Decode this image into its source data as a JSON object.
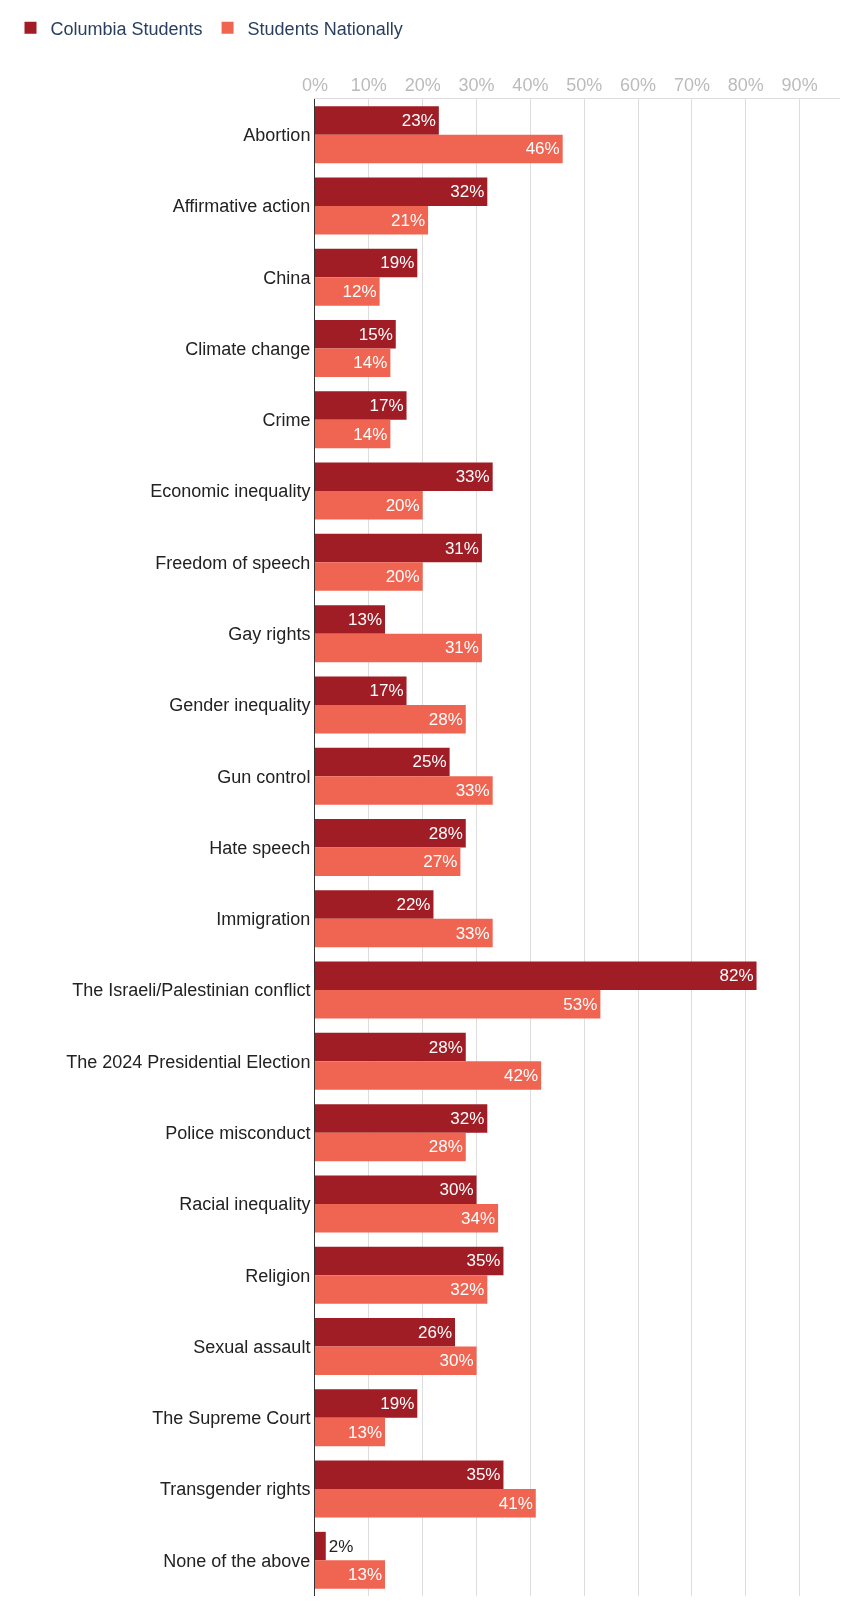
{
  "chart_data": {
    "type": "bar",
    "orientation": "horizontal",
    "categories": [
      "Abortion",
      "Affirmative action",
      "China",
      "Climate change",
      "Crime",
      "Economic inequality",
      "Freedom of speech",
      "Gay rights",
      "Gender inequality",
      "Gun control",
      "Hate speech",
      "Immigration",
      "The Israeli/Palestinian conflict",
      "The 2024 Presidential Election",
      "Police misconduct",
      "Racial inequality",
      "Religion",
      "Sexual assault",
      "The Supreme Court",
      "Transgender rights",
      "None of the above"
    ],
    "series": [
      {
        "name": "Columbia Students",
        "color": "#a01d25",
        "values": [
          23,
          32,
          19,
          15,
          17,
          33,
          31,
          13,
          17,
          25,
          28,
          22,
          82,
          28,
          32,
          30,
          35,
          26,
          19,
          35,
          2
        ],
        "value_labels": [
          "23%",
          "32%",
          "19%",
          "15%",
          "17%",
          "33%",
          "31%",
          "13%",
          "17%",
          "25%",
          "28%",
          "22%",
          "82%",
          "28%",
          "32%",
          "30%",
          "35%",
          "26%",
          "19%",
          "35%",
          "2%"
        ]
      },
      {
        "name": "Students Nationally",
        "color": "#f06552",
        "values": [
          46,
          21,
          12,
          14,
          14,
          20,
          20,
          31,
          28,
          33,
          27,
          33,
          53,
          42,
          28,
          34,
          32,
          30,
          13,
          41,
          13
        ],
        "value_labels": [
          "46%",
          "21%",
          "12%",
          "14%",
          "14%",
          "20%",
          "20%",
          "31%",
          "28%",
          "33%",
          "27%",
          "33%",
          "53%",
          "42%",
          "28%",
          "34%",
          "32%",
          "30%",
          "13%",
          "41%",
          "13%"
        ]
      }
    ],
    "xlim": [
      0,
      97.5
    ],
    "xticks": [
      {
        "value": 0,
        "label": "0%"
      },
      {
        "value": 10,
        "label": "10%"
      },
      {
        "value": 20,
        "label": "20%"
      },
      {
        "value": 30,
        "label": "30%"
      },
      {
        "value": 40,
        "label": "40%"
      },
      {
        "value": 50,
        "label": "50%"
      },
      {
        "value": 60,
        "label": "60%"
      },
      {
        "value": 70,
        "label": "70%"
      },
      {
        "value": 80,
        "label": "80%"
      },
      {
        "value": 90,
        "label": "90%"
      }
    ],
    "grid": "x",
    "legend": "top left"
  }
}
